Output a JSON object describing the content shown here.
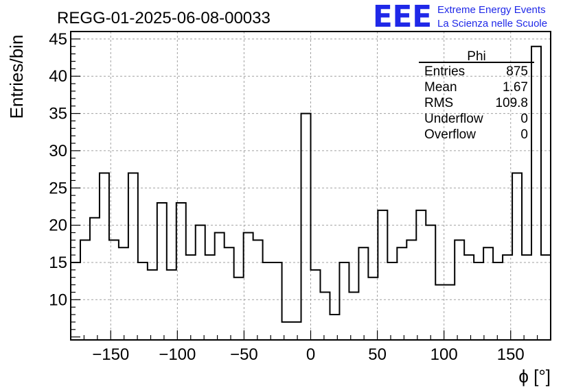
{
  "chart_data": {
    "type": "bar",
    "title": "REGG-01-2025-06-08-00033",
    "xlabel": "ϕ [°]",
    "ylabel": "Entries/bin",
    "xlim": [
      -180,
      180
    ],
    "ylim": [
      4.6,
      46
    ],
    "x_ticks": [
      -150,
      -100,
      -50,
      0,
      50,
      100,
      150
    ],
    "x_tick_labels": [
      "−150",
      "−100",
      "−50",
      "0",
      "50",
      "100",
      "150"
    ],
    "y_ticks": [
      10,
      15,
      20,
      25,
      30,
      35,
      40,
      45
    ],
    "y_tick_labels": [
      "10",
      "15",
      "20",
      "25",
      "30",
      "35",
      "40",
      "45"
    ],
    "grid": true,
    "bin_width": 7.2,
    "bin_edges_start": -180,
    "values": [
      15,
      18,
      21,
      27,
      18,
      17,
      27,
      15,
      14,
      23,
      14,
      23,
      16,
      20,
      16,
      19,
      17,
      13,
      19,
      18,
      15,
      15,
      7,
      7,
      35,
      14,
      11,
      8,
      15,
      11,
      17,
      13,
      22,
      15,
      17,
      18,
      22,
      20,
      12,
      12,
      18,
      16,
      15,
      17,
      15,
      16,
      27,
      16,
      44,
      16
    ]
  },
  "stats_box": {
    "title": "Phi",
    "rows": [
      {
        "label": "Entries",
        "value": "875"
      },
      {
        "label": "Mean",
        "value": "1.67"
      },
      {
        "label": "RMS",
        "value": "109.8"
      },
      {
        "label": "Underflow",
        "value": "0"
      },
      {
        "label": "Overflow",
        "value": "0"
      }
    ]
  },
  "logo": {
    "letters": "EEE",
    "line1": "Extreme Energy Events",
    "line2": "La Scienza nelle Scuole",
    "color": "#1f28e8"
  }
}
